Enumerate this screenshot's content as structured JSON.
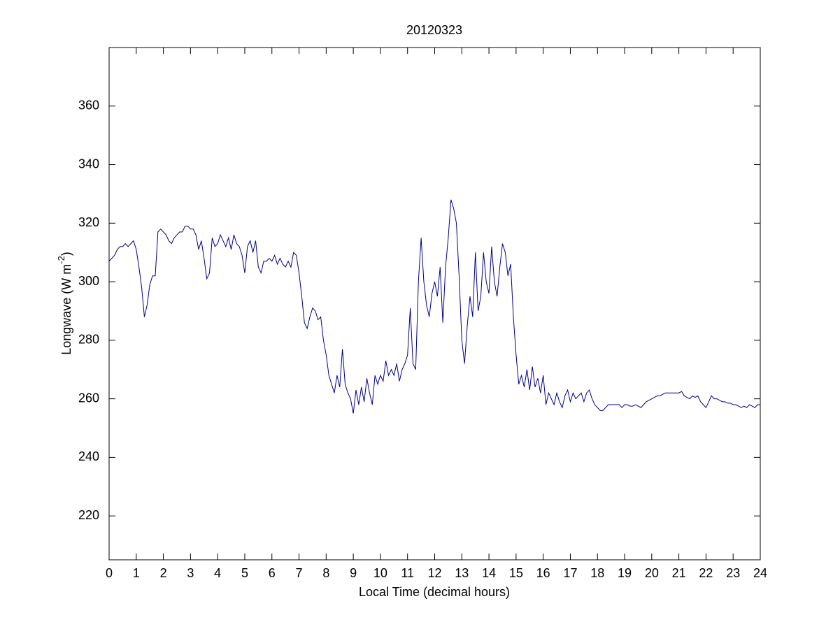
{
  "chart_data": {
    "type": "line",
    "title": "20120323",
    "xlabel": "Local Time (decimal hours)",
    "ylabel": [
      "Longwave (W m",
      "-2",
      ")"
    ],
    "x": [
      0,
      0.1,
      0.2,
      0.3,
      0.4,
      0.5,
      0.6,
      0.7,
      0.8,
      0.9,
      1,
      1.1,
      1.2,
      1.3,
      1.4,
      1.5,
      1.6,
      1.7,
      1.8,
      1.9,
      2,
      2.1,
      2.2,
      2.3,
      2.4,
      2.5,
      2.6,
      2.7,
      2.8,
      2.9,
      3,
      3.1,
      3.2,
      3.3,
      3.4,
      3.5,
      3.6,
      3.7,
      3.8,
      3.9,
      4,
      4.1,
      4.2,
      4.3,
      4.4,
      4.5,
      4.6,
      4.7,
      4.8,
      4.9,
      5,
      5.1,
      5.2,
      5.3,
      5.4,
      5.5,
      5.6,
      5.7,
      5.8,
      5.9,
      6,
      6.1,
      6.2,
      6.3,
      6.4,
      6.5,
      6.6,
      6.7,
      6.8,
      6.9,
      7,
      7.1,
      7.2,
      7.3,
      7.4,
      7.5,
      7.6,
      7.7,
      7.8,
      7.9,
      8,
      8.1,
      8.2,
      8.3,
      8.4,
      8.5,
      8.6,
      8.7,
      8.8,
      8.9,
      9,
      9.1,
      9.2,
      9.3,
      9.4,
      9.5,
      9.6,
      9.7,
      9.8,
      9.9,
      10,
      10.1,
      10.2,
      10.3,
      10.4,
      10.5,
      10.6,
      10.7,
      10.8,
      10.9,
      11,
      11.1,
      11.2,
      11.3,
      11.4,
      11.5,
      11.6,
      11.7,
      11.8,
      11.9,
      12,
      12.1,
      12.2,
      12.3,
      12.4,
      12.5,
      12.6,
      12.7,
      12.8,
      12.9,
      13,
      13.1,
      13.2,
      13.3,
      13.4,
      13.5,
      13.6,
      13.7,
      13.8,
      13.9,
      14,
      14.1,
      14.2,
      14.3,
      14.4,
      14.5,
      14.6,
      14.7,
      14.8,
      14.9,
      15,
      15.1,
      15.2,
      15.3,
      15.4,
      15.5,
      15.6,
      15.7,
      15.8,
      15.9,
      16,
      16.1,
      16.2,
      16.3,
      16.4,
      16.5,
      16.6,
      16.7,
      16.8,
      16.9,
      17,
      17.1,
      17.2,
      17.3,
      17.4,
      17.5,
      17.6,
      17.7,
      17.8,
      17.9,
      18,
      18.1,
      18.2,
      18.3,
      18.4,
      18.5,
      18.6,
      18.7,
      18.8,
      18.9,
      19,
      19.1,
      19.2,
      19.3,
      19.4,
      19.5,
      19.6,
      19.7,
      19.8,
      19.9,
      20,
      20.1,
      20.2,
      20.3,
      20.4,
      20.5,
      20.6,
      20.7,
      20.8,
      20.9,
      21,
      21.1,
      21.2,
      21.3,
      21.4,
      21.5,
      21.6,
      21.7,
      21.8,
      21.9,
      22,
      22.1,
      22.2,
      22.3,
      22.4,
      22.5,
      22.6,
      22.7,
      22.8,
      22.9,
      23,
      23.1,
      23.2,
      23.3,
      23.4,
      23.5,
      23.6,
      23.7,
      23.8,
      23.9,
      24
    ],
    "series": [
      {
        "color": "#00008b",
        "values": [
          307,
          308,
          309,
          311,
          312,
          312,
          313,
          312,
          313,
          314,
          311,
          305,
          298,
          288,
          292,
          299,
          302,
          302,
          317,
          318,
          317,
          316,
          314,
          313,
          315,
          316,
          317,
          317,
          319,
          319,
          318,
          318,
          316,
          311,
          314,
          308,
          301,
          303,
          315,
          312,
          313,
          316,
          314,
          312,
          315,
          311,
          316,
          313,
          312,
          309,
          303,
          312,
          314,
          310,
          314,
          305,
          303,
          307,
          307,
          308,
          307,
          309,
          306,
          308,
          306,
          305,
          307,
          305,
          310,
          309,
          303,
          295,
          286,
          284,
          288,
          291,
          290,
          287,
          288,
          280,
          275,
          268,
          265,
          262,
          268,
          264,
          277,
          265,
          262,
          260,
          255,
          263,
          258,
          264,
          259,
          267,
          262,
          258,
          268,
          265,
          268,
          266,
          273,
          268,
          270,
          268,
          272,
          266,
          270,
          272,
          275,
          291,
          272,
          270,
          300,
          315,
          300,
          292,
          288,
          296,
          300,
          295,
          305,
          286,
          305,
          315,
          328,
          325,
          320,
          302,
          280,
          272,
          285,
          295,
          288,
          310,
          290,
          295,
          310,
          300,
          296,
          312,
          300,
          295,
          305,
          313,
          310,
          302,
          306,
          288,
          275,
          265,
          268,
          264,
          270,
          263,
          271,
          264,
          267,
          262,
          268,
          258,
          262,
          260,
          258,
          262,
          259,
          257,
          261,
          263,
          259,
          262,
          260,
          261,
          262,
          259,
          262,
          263,
          260,
          258,
          257,
          256,
          256,
          257,
          258,
          258,
          258,
          258,
          258,
          257,
          258,
          258,
          257.5,
          257.5,
          258,
          257.5,
          257,
          258,
          259,
          259.5,
          260,
          260.5,
          261,
          261,
          261.5,
          262,
          262,
          262,
          262,
          262,
          262,
          262.5,
          261,
          260.5,
          260,
          261,
          260.5,
          261,
          259,
          258,
          257,
          259,
          261,
          260,
          260,
          259.5,
          259,
          259,
          258.5,
          258.5,
          258,
          258,
          257.5,
          257,
          257.5,
          257,
          258,
          257.5,
          257,
          258,
          258
        ]
      }
    ],
    "xlim": [
      0,
      24
    ],
    "ylim": [
      205,
      380
    ],
    "xticks": [
      0,
      1,
      2,
      3,
      4,
      5,
      6,
      7,
      8,
      9,
      10,
      11,
      12,
      13,
      14,
      15,
      16,
      17,
      18,
      19,
      20,
      21,
      22,
      23,
      24
    ],
    "yticks": [
      220,
      240,
      260,
      280,
      300,
      320,
      340,
      360
    ]
  }
}
